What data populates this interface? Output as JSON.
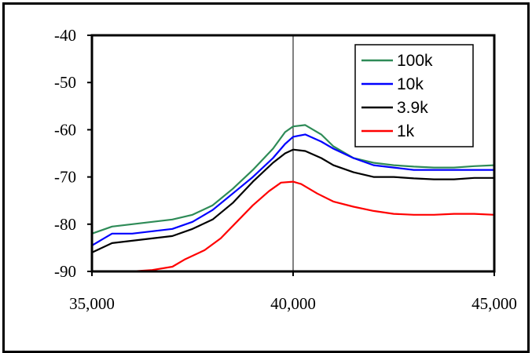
{
  "chart_data": {
    "type": "line",
    "title": "",
    "xlabel": "",
    "ylabel": "",
    "xlim": [
      35000,
      45000
    ],
    "ylim": [
      -90,
      -40
    ],
    "x_ticks": [
      35000,
      40000,
      45000
    ],
    "x_tick_labels": [
      "35,000",
      "40,000",
      "45,000"
    ],
    "y_ticks": [
      -40,
      -50,
      -60,
      -70,
      -80,
      -90
    ],
    "y_tick_labels": [
      "-40",
      "-50",
      "-60",
      "-70",
      "-80",
      "-90"
    ],
    "grid": "major vertical and horizontal at x=40000 only",
    "legend_placement": "top-right",
    "series": [
      {
        "name": "100k",
        "color": "#2e8b57",
        "points": [
          [
            35000,
            -82
          ],
          [
            35500,
            -80.5
          ],
          [
            36000,
            -80
          ],
          [
            36500,
            -79.5
          ],
          [
            37000,
            -79
          ],
          [
            37500,
            -78
          ],
          [
            38000,
            -76
          ],
          [
            38500,
            -72.5
          ],
          [
            39000,
            -68.5
          ],
          [
            39500,
            -64
          ],
          [
            39800,
            -60.5
          ],
          [
            40000,
            -59.3
          ],
          [
            40300,
            -59
          ],
          [
            40700,
            -61
          ],
          [
            41000,
            -63.5
          ],
          [
            41500,
            -66
          ],
          [
            42000,
            -67
          ],
          [
            42500,
            -67.5
          ],
          [
            43000,
            -67.8
          ],
          [
            43500,
            -68
          ],
          [
            44000,
            -68
          ],
          [
            44500,
            -67.7
          ],
          [
            45000,
            -67.5
          ]
        ]
      },
      {
        "name": "10k",
        "color": "#0000ff",
        "points": [
          [
            35000,
            -84.5
          ],
          [
            35500,
            -82
          ],
          [
            36000,
            -82
          ],
          [
            36500,
            -81.5
          ],
          [
            37000,
            -81
          ],
          [
            37500,
            -79.5
          ],
          [
            38000,
            -77
          ],
          [
            38500,
            -73.5
          ],
          [
            39000,
            -70
          ],
          [
            39500,
            -66
          ],
          [
            39800,
            -63
          ],
          [
            40000,
            -61.5
          ],
          [
            40300,
            -61
          ],
          [
            40700,
            -62.5
          ],
          [
            41000,
            -64
          ],
          [
            41500,
            -66
          ],
          [
            42000,
            -67.5
          ],
          [
            42500,
            -68
          ],
          [
            43000,
            -68.5
          ],
          [
            43500,
            -68.5
          ],
          [
            44000,
            -68.5
          ],
          [
            44500,
            -68.5
          ],
          [
            45000,
            -68.5
          ]
        ]
      },
      {
        "name": "3.9k",
        "color": "#000000",
        "points": [
          [
            35000,
            -86
          ],
          [
            35500,
            -84
          ],
          [
            36000,
            -83.5
          ],
          [
            36500,
            -83
          ],
          [
            37000,
            -82.5
          ],
          [
            37500,
            -81
          ],
          [
            38000,
            -79
          ],
          [
            38500,
            -75.5
          ],
          [
            39000,
            -71
          ],
          [
            39500,
            -67
          ],
          [
            39800,
            -65
          ],
          [
            40000,
            -64.2
          ],
          [
            40300,
            -64.5
          ],
          [
            40700,
            -66
          ],
          [
            41000,
            -67.5
          ],
          [
            41500,
            -69
          ],
          [
            42000,
            -70
          ],
          [
            42500,
            -70
          ],
          [
            43000,
            -70.3
          ],
          [
            43500,
            -70.5
          ],
          [
            44000,
            -70.5
          ],
          [
            44500,
            -70.2
          ],
          [
            45000,
            -70.2
          ]
        ]
      },
      {
        "name": "1k",
        "color": "#ff0000",
        "points": [
          [
            35000,
            -90
          ],
          [
            35500,
            -90
          ],
          [
            36000,
            -90
          ],
          [
            36500,
            -89.7
          ],
          [
            37000,
            -89
          ],
          [
            37300,
            -87.5
          ],
          [
            37800,
            -85.5
          ],
          [
            38200,
            -83
          ],
          [
            38600,
            -79.5
          ],
          [
            39000,
            -76
          ],
          [
            39400,
            -73
          ],
          [
            39700,
            -71.2
          ],
          [
            40000,
            -71
          ],
          [
            40200,
            -71.5
          ],
          [
            40600,
            -73.5
          ],
          [
            41000,
            -75.2
          ],
          [
            41500,
            -76.3
          ],
          [
            42000,
            -77.2
          ],
          [
            42500,
            -77.8
          ],
          [
            43000,
            -78
          ],
          [
            43500,
            -78
          ],
          [
            44000,
            -77.8
          ],
          [
            44500,
            -77.8
          ],
          [
            45000,
            -78
          ]
        ]
      }
    ]
  }
}
